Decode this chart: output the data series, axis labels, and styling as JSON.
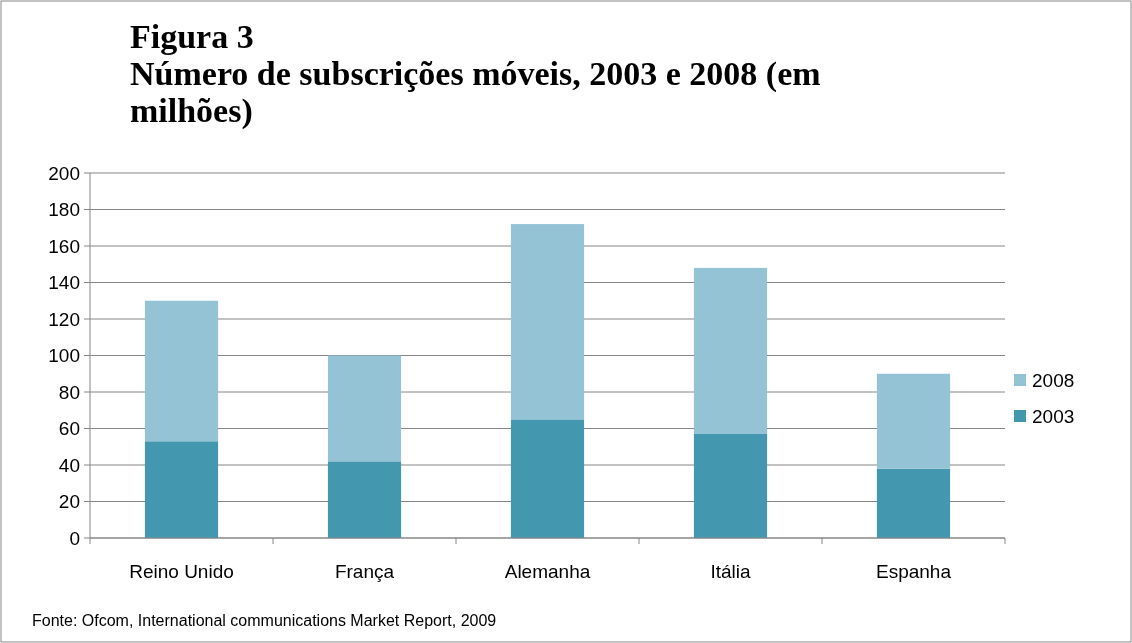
{
  "chart_data": {
    "type": "bar",
    "stacked": true,
    "title": "Figura 3",
    "subtitle": "Número de subscrições móveis, 2003 e 2008 (em milhões)",
    "categories": [
      "Reino Unido",
      "França",
      "Alemanha",
      "Itália",
      "Espanha"
    ],
    "series": [
      {
        "name": "2003",
        "color": "#4398b0",
        "values": [
          53,
          42,
          65,
          57,
          38
        ]
      },
      {
        "name": "2008",
        "color": "#93c3d5",
        "values": [
          77,
          58,
          107,
          91,
          52
        ]
      }
    ],
    "ylim": [
      0,
      200
    ],
    "yticks": [
      0,
      20,
      40,
      60,
      80,
      100,
      120,
      140,
      160,
      180,
      200
    ],
    "grid": "y",
    "legend": "right",
    "annotations": [
      "Fonte: Ofcom, International communications Market Report, 2009"
    ]
  }
}
